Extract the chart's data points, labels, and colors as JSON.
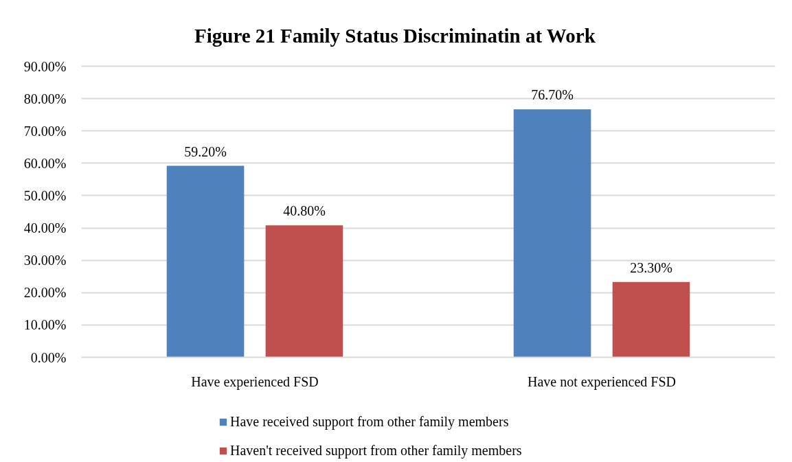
{
  "chart_data": {
    "type": "bar",
    "title": "Figure 21 Family Status Discriminatin at Work",
    "categories": [
      "Have experienced FSD",
      "Have not experienced FSD"
    ],
    "series": [
      {
        "name": "Have received support from other family members",
        "color": "#4f81bd",
        "values": [
          59.2,
          76.7
        ],
        "value_labels": [
          "59.20%",
          "76.70%"
        ]
      },
      {
        "name": "Haven't received support from other family members",
        "color": "#c0504d",
        "values": [
          40.8,
          23.3
        ],
        "value_labels": [
          "40.80%",
          "23.30%"
        ]
      }
    ],
    "ylim": [
      0,
      90
    ],
    "yticks": [
      {
        "value": 0,
        "label": "0.00%"
      },
      {
        "value": 10,
        "label": "10.00%"
      },
      {
        "value": 20,
        "label": "20.00%"
      },
      {
        "value": 30,
        "label": "30.00%"
      },
      {
        "value": 40,
        "label": "40.00%"
      },
      {
        "value": 50,
        "label": "50.00%"
      },
      {
        "value": 60,
        "label": "60.00%"
      },
      {
        "value": 70,
        "label": "70.00%"
      },
      {
        "value": 80,
        "label": "80.00%"
      },
      {
        "value": 90,
        "label": "90.00%"
      }
    ],
    "grid": "y",
    "legend": "bottom"
  }
}
